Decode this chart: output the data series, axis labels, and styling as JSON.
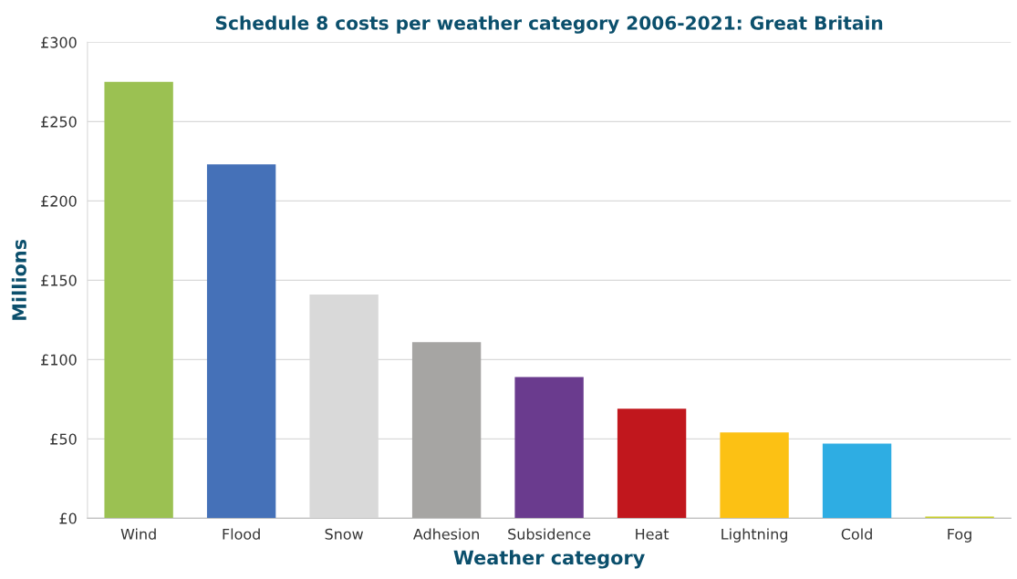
{
  "chart_data": {
    "type": "bar",
    "title": "Schedule 8 costs per weather category 2006-2021: Great Britain",
    "xlabel": "Weather category",
    "ylabel": "Millions",
    "categories": [
      "Wind",
      "Flood",
      "Snow",
      "Adhesion",
      "Subsidence",
      "Heat",
      "Lightning",
      "Cold",
      "Fog"
    ],
    "values": [
      275,
      223,
      141,
      111,
      89,
      69,
      54,
      47,
      1
    ],
    "colors": [
      "#9bc152",
      "#4571b8",
      "#d9d9d9",
      "#a6a5a3",
      "#6a3b8e",
      "#c1171d",
      "#fcc114",
      "#2eade3",
      "#c9cf2a"
    ],
    "ylim": [
      0,
      300
    ],
    "yticks": [
      {
        "value": 0,
        "label": "£0"
      },
      {
        "value": 50,
        "label": "£50"
      },
      {
        "value": 100,
        "label": "£100"
      },
      {
        "value": 150,
        "label": "£150"
      },
      {
        "value": 200,
        "label": "£200"
      },
      {
        "value": 250,
        "label": "£250"
      },
      {
        "value": 300,
        "label": "£300"
      }
    ],
    "grid": "y",
    "legend": false
  }
}
